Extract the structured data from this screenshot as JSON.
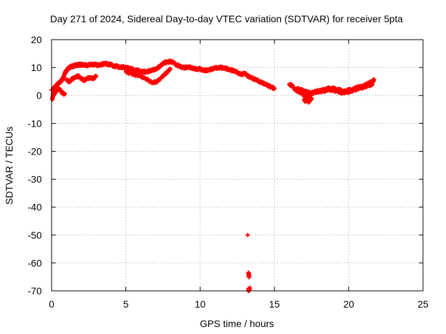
{
  "chart_data": {
    "type": "scatter",
    "title": "Day 271 of 2024, Sidereal Day-to-day VTEC variation (SDTVAR) for receiver 5pta",
    "xlabel": "GPS time / hours",
    "ylabel": "SDTVAR / TECUs",
    "xlim": [
      0,
      25
    ],
    "ylim": [
      -70,
      20
    ],
    "xticks": [
      0,
      5,
      10,
      15,
      20,
      25
    ],
    "yticks": [
      -70,
      -60,
      -50,
      -40,
      -30,
      -20,
      -10,
      0,
      10,
      20
    ],
    "xtick_labels": [
      "0",
      "5",
      "10",
      "15",
      "20",
      "25"
    ],
    "ytick_labels": [
      "-70",
      "-60",
      "-50",
      "-40",
      "-30",
      "-20",
      "-10",
      "0",
      "10",
      "20"
    ],
    "grid": true,
    "marker": "plus",
    "series": [
      {
        "name": "SDTVAR",
        "color": "#ff0000",
        "x": [
          0.0,
          0.05,
          0.1,
          0.15,
          0.2,
          0.3,
          0.4,
          0.5,
          0.6,
          0.7,
          0.8,
          0.9,
          1.0,
          1.1,
          1.2,
          1.3,
          1.4,
          1.5,
          1.6,
          1.7,
          1.8,
          1.9,
          2.0,
          2.2,
          2.4,
          2.6,
          2.8,
          3.0,
          3.2,
          3.4,
          3.6,
          3.8,
          4.0,
          4.2,
          4.4,
          4.6,
          4.8,
          5.0,
          5.2,
          5.4,
          5.6,
          5.8,
          6.0,
          6.2,
          6.4,
          6.6,
          6.8,
          7.0,
          7.2,
          7.4,
          7.6,
          7.8,
          8.0,
          8.2,
          8.4,
          8.6,
          8.8,
          9.0,
          9.2,
          9.4,
          9.6,
          9.8,
          10.0,
          10.2,
          10.4,
          10.6,
          10.8,
          11.0,
          11.2,
          11.4,
          11.6,
          11.8,
          12.0,
          12.2,
          12.4,
          12.6,
          12.8,
          13.0,
          13.2,
          13.4,
          13.6,
          13.8,
          14.0,
          14.2,
          14.4,
          14.6,
          14.8,
          15.0,
          1.0,
          1.2,
          1.4,
          1.6,
          1.8,
          2.0,
          2.2,
          2.4,
          2.6,
          2.8,
          3.0,
          5.0,
          5.3,
          5.6,
          5.9,
          6.2,
          6.5,
          6.8,
          7.1,
          7.4,
          7.7,
          8.0,
          0.1,
          0.3,
          0.5,
          0.7,
          0.9,
          13.2,
          13.25,
          13.3,
          13.35,
          13.25,
          13.3,
          13.25,
          13.3,
          13.25,
          16.0,
          16.2,
          16.4,
          16.6,
          16.8,
          17.0,
          17.2,
          17.4,
          17.6,
          17.8,
          18.0,
          18.2,
          18.4,
          18.6,
          18.8,
          19.0,
          19.2,
          19.4,
          19.6,
          19.8,
          20.0,
          20.2,
          20.4,
          20.6,
          20.8,
          21.0,
          21.2,
          21.4,
          21.6,
          21.7,
          16.5,
          16.8,
          17.1,
          17.4,
          17.7,
          18.0,
          18.3,
          18.6,
          18.9,
          19.2,
          19.5,
          19.8,
          20.1,
          20.4,
          20.7,
          21.0,
          21.3,
          21.6,
          17.0,
          17.1,
          17.2,
          17.3,
          17.4,
          17.5
        ],
        "y": [
          2.0,
          -1.5,
          0.5,
          3.0,
          2.5,
          3.5,
          4.0,
          4.5,
          5.0,
          5.5,
          6.5,
          8.0,
          9.0,
          9.5,
          10.0,
          10.3,
          10.5,
          10.6,
          10.8,
          10.9,
          11.0,
          11.0,
          11.0,
          11.0,
          10.8,
          11.0,
          11.2,
          11.0,
          10.8,
          11.2,
          11.5,
          11.2,
          11.0,
          10.5,
          10.5,
          10.0,
          10.2,
          10.0,
          9.8,
          9.5,
          9.0,
          9.0,
          8.5,
          8.5,
          8.5,
          8.8,
          9.0,
          9.5,
          10.0,
          11.0,
          11.8,
          12.0,
          12.2,
          11.8,
          11.0,
          10.5,
          10.0,
          10.0,
          10.2,
          10.0,
          9.5,
          9.5,
          9.5,
          9.0,
          9.0,
          9.2,
          9.5,
          9.8,
          10.0,
          10.0,
          9.8,
          9.6,
          9.2,
          9.0,
          8.5,
          8.0,
          7.5,
          8.0,
          7.0,
          6.5,
          6.0,
          5.5,
          5.0,
          4.5,
          4.0,
          3.5,
          3.0,
          2.5,
          5.5,
          5.0,
          6.0,
          6.5,
          7.0,
          6.0,
          5.5,
          6.0,
          6.5,
          6.0,
          7.0,
          8.5,
          8.0,
          7.5,
          7.0,
          6.5,
          5.5,
          4.5,
          5.0,
          6.5,
          8.0,
          9.5,
          0.0,
          1.5,
          2.5,
          1.0,
          0.5,
          -50.0,
          -64.0,
          -65.0,
          -69.0,
          -70.0,
          -69.5,
          -63.5,
          -64.5,
          -69.2,
          4.0,
          3.5,
          2.0,
          1.5,
          1.0,
          0.0,
          -0.5,
          0.0,
          1.0,
          1.5,
          1.5,
          2.0,
          2.0,
          2.5,
          2.5,
          2.5,
          2.0,
          2.0,
          1.5,
          1.5,
          2.0,
          2.0,
          2.5,
          3.0,
          3.0,
          3.5,
          4.0,
          4.5,
          5.0,
          5.5,
          2.5,
          2.0,
          1.5,
          1.0,
          1.0,
          1.5,
          1.5,
          2.0,
          2.0,
          1.5,
          1.0,
          1.0,
          1.5,
          2.0,
          2.5,
          3.0,
          3.5,
          4.0,
          -1.5,
          -2.0,
          -1.0,
          -2.5,
          -1.5,
          -1.0
        ]
      }
    ]
  }
}
